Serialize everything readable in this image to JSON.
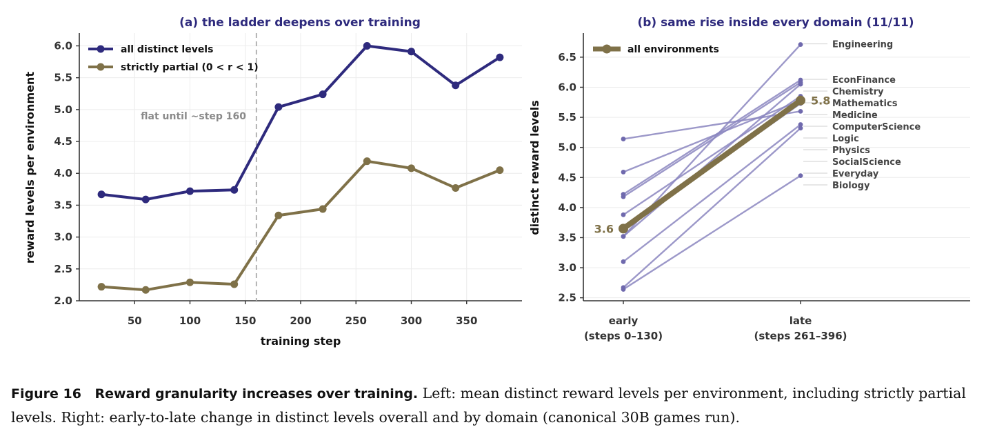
{
  "chart_data": [
    {
      "type": "line",
      "title": "(a) the ladder deepens over training",
      "xlabel": "training step",
      "ylabel": "reward levels per environment",
      "xlim": [
        0,
        400
      ],
      "ylim": [
        2.0,
        6.2
      ],
      "xticks": [
        "50",
        "100",
        "150",
        "200",
        "250",
        "300",
        "350"
      ],
      "yticks": [
        "2.0",
        "2.5",
        "3.0",
        "3.5",
        "4.0",
        "4.5",
        "5.0",
        "5.5",
        "6.0"
      ],
      "x": [
        20,
        60,
        100,
        140,
        180,
        220,
        260,
        300,
        340,
        380
      ],
      "series": [
        {
          "name": "all distinct levels",
          "color": "#2e2a7d",
          "values": [
            3.67,
            3.59,
            3.72,
            3.74,
            5.04,
            5.24,
            6.0,
            5.91,
            5.38,
            5.82
          ]
        },
        {
          "name": "strictly partial (0 < r < 1)",
          "color": "#7f7148",
          "values": [
            2.22,
            2.17,
            2.29,
            2.26,
            3.34,
            3.44,
            4.19,
            4.08,
            3.77,
            4.05
          ]
        }
      ],
      "vline": {
        "x": 160,
        "label": "flat until ~step 160"
      },
      "legend": "top-left",
      "grid": true
    },
    {
      "type": "line",
      "title": "(b) same rise inside every domain (11/11)",
      "ylabel": "distinct reward levels",
      "categories": [
        "early\n(steps 0–130)",
        "late\n(steps 261–396)"
      ],
      "category_lines": [
        [
          "early",
          "(steps 0–130)"
        ],
        [
          "late",
          "(steps 261–396)"
        ]
      ],
      "ylim": [
        2.45,
        6.9
      ],
      "yticks": [
        "2.5",
        "3.0",
        "3.5",
        "4.0",
        "4.5",
        "5.0",
        "5.5",
        "6.0",
        "6.5"
      ],
      "domains": [
        {
          "name": "Engineering",
          "early": 3.52,
          "late": 6.71
        },
        {
          "name": "EconFinance",
          "early": 4.22,
          "late": 6.12
        },
        {
          "name": "Chemistry",
          "early": 4.18,
          "late": 6.08
        },
        {
          "name": "Medicine",
          "early": 3.88,
          "late": 5.85
        },
        {
          "name": "Physics",
          "early": 5.14,
          "late": 5.6
        },
        {
          "name": "SocialScience",
          "early": 3.1,
          "late": 5.38
        },
        {
          "name": "Everyday",
          "early": 2.67,
          "late": 5.32
        },
        {
          "name": "Mathematics",
          "early": 3.52,
          "late": 6.05
        },
        {
          "name": "ComputerScience",
          "early": 4.59,
          "late": 5.78
        },
        {
          "name": "Biology",
          "early": 2.64,
          "late": 4.53
        },
        {
          "name": "Logic",
          "early": 3.65,
          "late": 5.73
        }
      ],
      "overall": {
        "name": "all environments",
        "early": 3.65,
        "late": 5.78,
        "early_label": "3.6",
        "late_label": "5.8"
      },
      "colors": {
        "domain": "#8b86bf",
        "overall": "#7f7148"
      },
      "legend": "top-left"
    }
  ],
  "caption": {
    "label": "Figure 16",
    "heading": "Reward granularity increases over training.",
    "text": "Left: mean distinct reward levels per environment, including strictly partial levels. Right: early-to-late change in distinct levels overall and by domain (canonical 30B games run)."
  }
}
